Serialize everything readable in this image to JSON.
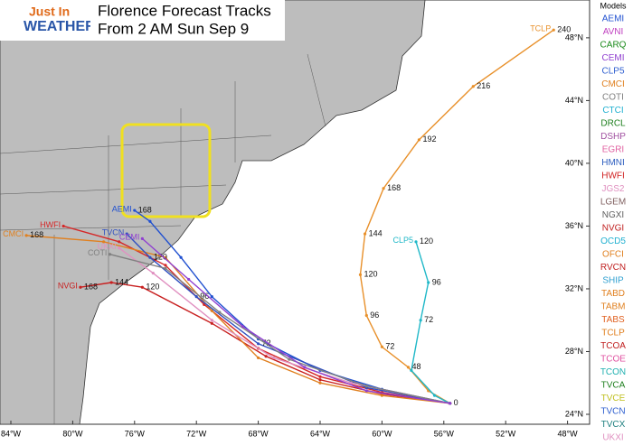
{
  "logo": {
    "line1": "Just In",
    "line2": "WEATHER"
  },
  "title": {
    "line1": "Florence Forecast Tracks",
    "line2": "From 2 AM Sun Sep 9"
  },
  "legend": {
    "title": "Models",
    "items": [
      {
        "name": "AEMI",
        "color": "#2050d0"
      },
      {
        "name": "AVNI",
        "color": "#c040c0"
      },
      {
        "name": "CARQ",
        "color": "#1a8a1a"
      },
      {
        "name": "CEMI",
        "color": "#9040d0"
      },
      {
        "name": "CLP5",
        "color": "#3060d0"
      },
      {
        "name": "CMCI",
        "color": "#e08020"
      },
      {
        "name": "COTI",
        "color": "#808080"
      },
      {
        "name": "CTCI",
        "color": "#20b0d0"
      },
      {
        "name": "DRCL",
        "color": "#208020"
      },
      {
        "name": "DSHP",
        "color": "#a050a0"
      },
      {
        "name": "EGRI",
        "color": "#e060a0"
      },
      {
        "name": "HMNI",
        "color": "#3060c0"
      },
      {
        "name": "HWFI",
        "color": "#d02020"
      },
      {
        "name": "JGS2",
        "color": "#e090c0"
      },
      {
        "name": "LGEM",
        "color": "#806060"
      },
      {
        "name": "NGXI",
        "color": "#606060"
      },
      {
        "name": "NVGI",
        "color": "#c02020"
      },
      {
        "name": "OCD5",
        "color": "#20b0d0"
      },
      {
        "name": "OFCI",
        "color": "#e08020"
      },
      {
        "name": "RVCN",
        "color": "#c02020"
      },
      {
        "name": "SHIP",
        "color": "#30a0d0"
      },
      {
        "name": "TABD",
        "color": "#e08020"
      },
      {
        "name": "TABM",
        "color": "#e08020"
      },
      {
        "name": "TABS",
        "color": "#e06020"
      },
      {
        "name": "TCLP",
        "color": "#e08020"
      },
      {
        "name": "TCOA",
        "color": "#c02020"
      },
      {
        "name": "TCOE",
        "color": "#e050a0"
      },
      {
        "name": "TCON",
        "color": "#20b0b0"
      },
      {
        "name": "TVCA",
        "color": "#208020"
      },
      {
        "name": "TVCE",
        "color": "#c0c020"
      },
      {
        "name": "TVCN",
        "color": "#3060d0"
      },
      {
        "name": "TVCX",
        "color": "#208080"
      },
      {
        "name": "UKXI",
        "color": "#e090c0"
      }
    ]
  },
  "map": {
    "lon_ticks": [
      {
        "value": 84,
        "label": "84°W"
      },
      {
        "value": 80,
        "label": "80°W"
      },
      {
        "value": 76,
        "label": "76°W"
      },
      {
        "value": 72,
        "label": "72°W"
      },
      {
        "value": 68,
        "label": "68°W"
      },
      {
        "value": 64,
        "label": "64°W"
      },
      {
        "value": 60,
        "label": "60°W"
      },
      {
        "value": 56,
        "label": "56°W"
      },
      {
        "value": 52,
        "label": "52°W"
      },
      {
        "value": 48,
        "label": "48°W"
      }
    ],
    "lat_ticks": [
      {
        "value": 24,
        "label": "24°N"
      },
      {
        "value": 28,
        "label": "28°N"
      },
      {
        "value": 32,
        "label": "32°N"
      },
      {
        "value": 36,
        "label": "36°N"
      },
      {
        "value": 40,
        "label": "40°N"
      },
      {
        "value": 44,
        "label": "44°N"
      },
      {
        "value": 48,
        "label": "48°N"
      }
    ],
    "tracks": [
      {
        "model": "TCLP",
        "color": "#e8902a",
        "points": [
          {
            "lon": 55.6,
            "lat": 24.7,
            "hour": 0
          },
          {
            "lon": 57,
            "lat": 25.5
          },
          {
            "lon": 58.3,
            "lat": 27.0,
            "hour": 48
          },
          {
            "lon": 60.0,
            "lat": 28.3,
            "hour": 72
          },
          {
            "lon": 61.0,
            "lat": 30.3,
            "hour": 96
          },
          {
            "lon": 61.4,
            "lat": 32.9,
            "hour": 120
          },
          {
            "lon": 61.1,
            "lat": 35.5,
            "hour": 144
          },
          {
            "lon": 59.9,
            "lat": 38.4,
            "hour": 168
          },
          {
            "lon": 57.6,
            "lat": 41.5,
            "hour": 192
          },
          {
            "lon": 54.1,
            "lat": 44.9,
            "hour": 216
          },
          {
            "lon": 48.9,
            "lat": 48.5,
            "hour": 240
          }
        ]
      },
      {
        "model": "CLP5",
        "color": "#20b8c8",
        "points": [
          {
            "lon": 55.6,
            "lat": 24.7
          },
          {
            "lon": 56.6,
            "lat": 25.2
          },
          {
            "lon": 58.1,
            "lat": 26.8
          },
          {
            "lon": 57.5,
            "lat": 30.0,
            "hour": 72
          },
          {
            "lon": 57.0,
            "lat": 32.4,
            "hour": 96
          },
          {
            "lon": 57.8,
            "lat": 35.0,
            "hour": 120
          }
        ]
      },
      {
        "model": "NVGI",
        "color": "#c82020",
        "points": [
          {
            "lon": 55.6,
            "lat": 24.7
          },
          {
            "lon": 60,
            "lat": 25.3
          },
          {
            "lon": 64,
            "lat": 26.2
          },
          {
            "lon": 67.5,
            "lat": 27.7
          },
          {
            "lon": 71,
            "lat": 29.8
          },
          {
            "lon": 75.5,
            "lat": 32.1,
            "hour": 120
          },
          {
            "lon": 77.5,
            "lat": 32.4,
            "hour": 144
          },
          {
            "lon": 79.5,
            "lat": 32.1,
            "hour": 168
          }
        ]
      },
      {
        "model": "HWFI",
        "color": "#d42828",
        "points": [
          {
            "lon": 55.6,
            "lat": 24.7
          },
          {
            "lon": 60,
            "lat": 25.4
          },
          {
            "lon": 64,
            "lat": 26.4
          },
          {
            "lon": 68,
            "lat": 28.2
          },
          {
            "lon": 71.5,
            "lat": 31
          },
          {
            "lon": 74,
            "lat": 33.5
          },
          {
            "lon": 77,
            "lat": 35
          },
          {
            "lon": 80.6,
            "lat": 36.0
          }
        ]
      },
      {
        "model": "AEMI",
        "color": "#2050d0",
        "points": [
          {
            "lon": 55.6,
            "lat": 24.7
          },
          {
            "lon": 60,
            "lat": 25.6
          },
          {
            "lon": 64,
            "lat": 26.8
          },
          {
            "lon": 68,
            "lat": 28.8
          },
          {
            "lon": 71,
            "lat": 31.5
          },
          {
            "lon": 73,
            "lat": 34
          },
          {
            "lon": 75,
            "lat": 36.3
          },
          {
            "lon": 76,
            "lat": 37.0,
            "hour": 168
          }
        ]
      },
      {
        "model": "CMCI",
        "color": "#e08020",
        "points": [
          {
            "lon": 55.6,
            "lat": 24.7
          },
          {
            "lon": 60,
            "lat": 25.2
          },
          {
            "lon": 64,
            "lat": 26.0
          },
          {
            "lon": 68,
            "lat": 27.6
          },
          {
            "lon": 71,
            "lat": 30.6
          },
          {
            "lon": 74,
            "lat": 34
          },
          {
            "lon": 78,
            "lat": 35
          },
          {
            "lon": 83,
            "lat": 35.4,
            "hour": 168
          }
        ]
      },
      {
        "model": "TVCN",
        "color": "#3050c0",
        "points": [
          {
            "lon": 55.6,
            "lat": 24.7
          },
          {
            "lon": 61,
            "lat": 25.7
          },
          {
            "lon": 68,
            "lat": 28.5,
            "hour": 72
          },
          {
            "lon": 72,
            "lat": 31.5,
            "hour": 96
          },
          {
            "lon": 75,
            "lat": 34,
            "hour": 120
          },
          {
            "lon": 76.5,
            "lat": 35.5
          }
        ]
      },
      {
        "model": "UKXI",
        "color": "#e090c0",
        "points": [
          {
            "lon": 55.6,
            "lat": 24.7
          },
          {
            "lon": 62,
            "lat": 26.0
          },
          {
            "lon": 67,
            "lat": 27.6
          },
          {
            "lon": 71,
            "lat": 30
          },
          {
            "lon": 74.8,
            "lat": 33
          },
          {
            "lon": 77,
            "lat": 34.6
          }
        ]
      },
      {
        "model": "COTI",
        "color": "#808080",
        "points": [
          {
            "lon": 55.6,
            "lat": 24.7
          },
          {
            "lon": 61,
            "lat": 25.8
          },
          {
            "lon": 66,
            "lat": 27.5
          },
          {
            "lon": 70.5,
            "lat": 30.5
          },
          {
            "lon": 74,
            "lat": 33.3
          },
          {
            "lon": 77.6,
            "lat": 34.2
          }
        ]
      },
      {
        "model": "CEMI",
        "color": "#9040d0",
        "points": [
          {
            "lon": 55.6,
            "lat": 24.7
          },
          {
            "lon": 61,
            "lat": 25.5
          },
          {
            "lon": 65,
            "lat": 27.0
          },
          {
            "lon": 69,
            "lat": 29.6
          },
          {
            "lon": 72.5,
            "lat": 32.6
          },
          {
            "lon": 75.5,
            "lat": 35.2
          }
        ]
      }
    ]
  }
}
